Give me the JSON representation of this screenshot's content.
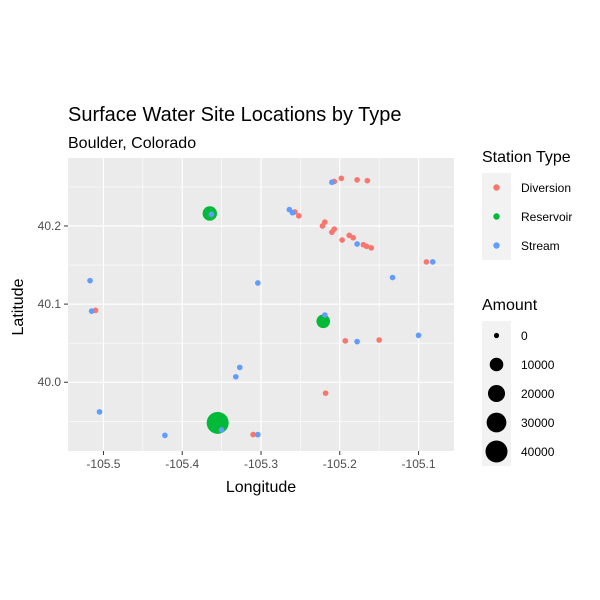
{
  "chart_data": {
    "type": "scatter",
    "title": "Surface Water Site Locations by Type",
    "subtitle": "Boulder, Colorado",
    "xlabel": "Longitude",
    "ylabel": "Latitude",
    "xlim": [
      -105.545,
      -105.055
    ],
    "ylim": [
      39.912,
      40.287
    ],
    "xticks": [
      -105.5,
      -105.4,
      -105.3,
      -105.2,
      -105.1
    ],
    "xtick_labels": [
      "-105.5",
      "-105.4",
      "-105.3",
      "-105.2",
      "-105.1"
    ],
    "yticks": [
      40.0,
      40.1,
      40.2
    ],
    "ytick_labels": [
      "40.0",
      "40.1",
      "40.2"
    ],
    "grid": true,
    "colors": {
      "panel": "#ebebeb",
      "grid": "#ffffff",
      "Diversion": "#f8766d",
      "Reservoir": "#00ba38",
      "Stream": "#619cff"
    },
    "color_legend": {
      "title": "Station Type",
      "entries": [
        "Diversion",
        "Reservoir",
        "Stream"
      ]
    },
    "size_legend": {
      "title": "Amount",
      "values": [
        0,
        10000,
        20000,
        30000,
        40000
      ],
      "labels": [
        "0",
        "10000",
        "20000",
        "30000",
        "40000"
      ]
    },
    "series": [
      {
        "name": "Diversion",
        "points": [
          {
            "x": -105.207,
            "y": 40.257,
            "amount": 30
          },
          {
            "x": -105.198,
            "y": 40.261,
            "amount": 30
          },
          {
            "x": -105.178,
            "y": 40.259,
            "amount": 30
          },
          {
            "x": -105.165,
            "y": 40.258,
            "amount": 30
          },
          {
            "x": -105.257,
            "y": 40.218,
            "amount": 30
          },
          {
            "x": -105.252,
            "y": 40.213,
            "amount": 30
          },
          {
            "x": -105.219,
            "y": 40.205,
            "amount": 30
          },
          {
            "x": -105.222,
            "y": 40.2,
            "amount": 30
          },
          {
            "x": -105.207,
            "y": 40.196,
            "amount": 30
          },
          {
            "x": -105.21,
            "y": 40.192,
            "amount": 30
          },
          {
            "x": -105.188,
            "y": 40.188,
            "amount": 30
          },
          {
            "x": -105.183,
            "y": 40.185,
            "amount": 30
          },
          {
            "x": -105.197,
            "y": 40.182,
            "amount": 30
          },
          {
            "x": -105.17,
            "y": 40.176,
            "amount": 30
          },
          {
            "x": -105.166,
            "y": 40.174,
            "amount": 30
          },
          {
            "x": -105.16,
            "y": 40.172,
            "amount": 30
          },
          {
            "x": -105.09,
            "y": 40.154,
            "amount": 30
          },
          {
            "x": -105.51,
            "y": 40.092,
            "amount": 30
          },
          {
            "x": -105.193,
            "y": 40.053,
            "amount": 30
          },
          {
            "x": -105.15,
            "y": 40.054,
            "amount": 30
          },
          {
            "x": -105.218,
            "y": 39.986,
            "amount": 30
          },
          {
            "x": -105.31,
            "y": 39.933,
            "amount": 30
          }
        ]
      },
      {
        "name": "Reservoir",
        "points": [
          {
            "x": -105.365,
            "y": 40.216,
            "amount": 12000
          },
          {
            "x": -105.221,
            "y": 40.078,
            "amount": 10000
          },
          {
            "x": -105.355,
            "y": 39.948,
            "amount": 40000
          }
        ]
      },
      {
        "name": "Stream",
        "points": [
          {
            "x": -105.21,
            "y": 40.256,
            "amount": 30
          },
          {
            "x": -105.264,
            "y": 40.221,
            "amount": 30
          },
          {
            "x": -105.363,
            "y": 40.215,
            "amount": 30
          },
          {
            "x": -105.26,
            "y": 40.217,
            "amount": 30
          },
          {
            "x": -105.082,
            "y": 40.154,
            "amount": 30
          },
          {
            "x": -105.178,
            "y": 40.177,
            "amount": 30
          },
          {
            "x": -105.133,
            "y": 40.134,
            "amount": 30
          },
          {
            "x": -105.517,
            "y": 40.13,
            "amount": 30
          },
          {
            "x": -105.304,
            "y": 40.127,
            "amount": 30
          },
          {
            "x": -105.515,
            "y": 40.091,
            "amount": 30
          },
          {
            "x": -105.219,
            "y": 40.086,
            "amount": 30
          },
          {
            "x": -105.1,
            "y": 40.06,
            "amount": 30
          },
          {
            "x": -105.178,
            "y": 40.052,
            "amount": 30
          },
          {
            "x": -105.327,
            "y": 40.019,
            "amount": 30
          },
          {
            "x": -105.332,
            "y": 40.007,
            "amount": 30
          },
          {
            "x": -105.505,
            "y": 39.962,
            "amount": 30
          },
          {
            "x": -105.422,
            "y": 39.932,
            "amount": 30
          },
          {
            "x": -105.35,
            "y": 39.939,
            "amount": 30
          },
          {
            "x": -105.304,
            "y": 39.933,
            "amount": 30
          }
        ]
      }
    ]
  }
}
